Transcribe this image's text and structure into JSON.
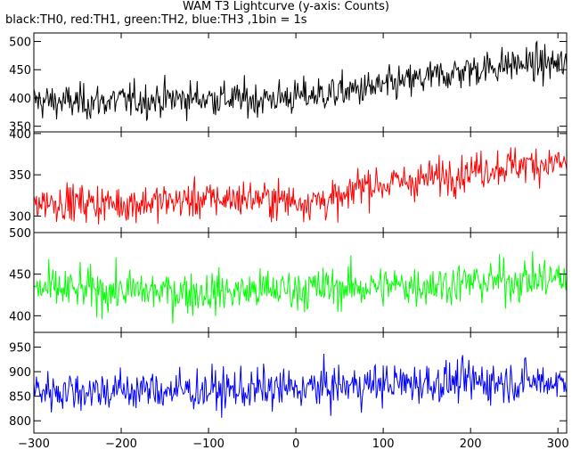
{
  "chart_data": {
    "type": "line",
    "title": "WAM T3 Lightcurve (y-axis: Counts)",
    "subtitle": "black:TH0, red:TH1, green:TH2, blue:TH3 ,1bin = 1s",
    "xlabel": "",
    "ylabel": "",
    "xlim": [
      -300,
      310
    ],
    "xticks": [
      -300,
      -200,
      -100,
      0,
      100,
      200,
      300
    ],
    "grid": false,
    "panels": [
      {
        "name": "TH0",
        "color": "#000000",
        "ylim": [
          340,
          515
        ],
        "yticks": [
          350,
          400,
          450,
          500
        ],
        "trend": [
          [
            -300,
            395
          ],
          [
            -250,
            392
          ],
          [
            -150,
            398
          ],
          [
            -100,
            400
          ],
          [
            -50,
            397
          ],
          [
            0,
            402
          ],
          [
            50,
            410
          ],
          [
            100,
            420
          ],
          [
            150,
            435
          ],
          [
            200,
            450
          ],
          [
            250,
            460
          ],
          [
            300,
            460
          ],
          [
            310,
            455
          ]
        ],
        "noise": 22
      },
      {
        "name": "TH1",
        "color": "#ff0000",
        "ylim": [
          280,
          402
        ],
        "yticks": [
          300,
          350,
          400
        ],
        "trend": [
          [
            -300,
            318
          ],
          [
            -200,
            315
          ],
          [
            -100,
            320
          ],
          [
            -50,
            322
          ],
          [
            0,
            318
          ],
          [
            60,
            320
          ],
          [
            70,
            340
          ],
          [
            100,
            338
          ],
          [
            150,
            345
          ],
          [
            200,
            355
          ],
          [
            250,
            362
          ],
          [
            300,
            365
          ],
          [
            310,
            362
          ]
        ],
        "noise": 16
      },
      {
        "name": "TH2",
        "color": "#00ff00",
        "ylim": [
          380,
          500
        ],
        "yticks": [
          400,
          450,
          500
        ],
        "trend": [
          [
            -300,
            432
          ],
          [
            -200,
            430
          ],
          [
            -100,
            428
          ],
          [
            0,
            432
          ],
          [
            100,
            435
          ],
          [
            200,
            440
          ],
          [
            300,
            445
          ],
          [
            310,
            445
          ]
        ],
        "noise": 18
      },
      {
        "name": "TH3",
        "color": "#0000ff",
        "ylim": [
          775,
          980
        ],
        "yticks": [
          800,
          850,
          900,
          950
        ],
        "trend": [
          [
            -300,
            862
          ],
          [
            -200,
            862
          ],
          [
            -100,
            862
          ],
          [
            0,
            865
          ],
          [
            100,
            875
          ],
          [
            200,
            880
          ],
          [
            300,
            880
          ],
          [
            310,
            878
          ]
        ],
        "noise": 30
      }
    ]
  }
}
